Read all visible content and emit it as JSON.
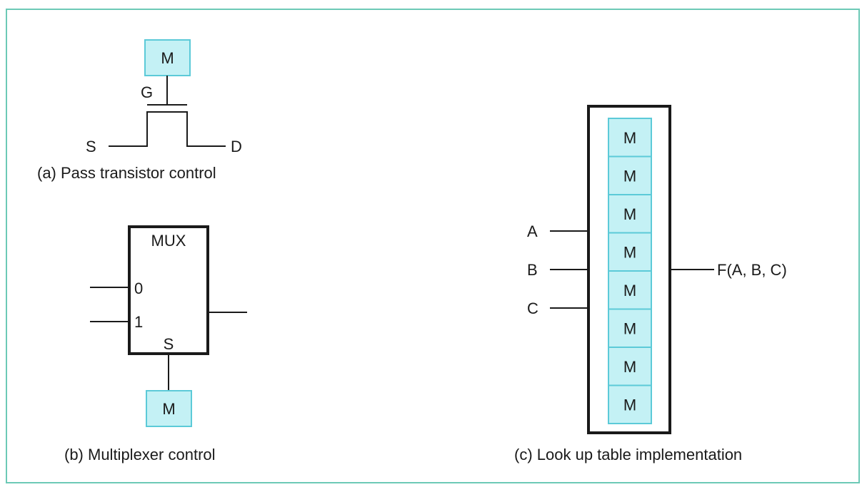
{
  "colors": {
    "frame_border": "#6cc9b6",
    "memory_fill": "#c4f1f5",
    "memory_border": "#5ccad8",
    "line": "#1a1a1a"
  },
  "pass_transistor": {
    "memory_label": "M",
    "gate_label": "G",
    "source_label": "S",
    "drain_label": "D",
    "caption": "(a) Pass transistor control"
  },
  "multiplexer": {
    "block_label": "MUX",
    "input_0_label": "0",
    "input_1_label": "1",
    "select_label": "S",
    "memory_label": "M",
    "caption": "(b) Multiplexer control"
  },
  "lut": {
    "inputs": [
      "A",
      "B",
      "C"
    ],
    "output_label": "F(A, B, C)",
    "memory_cells": [
      "M",
      "M",
      "M",
      "M",
      "M",
      "M",
      "M",
      "M"
    ],
    "caption": "(c) Look up table implementation"
  }
}
